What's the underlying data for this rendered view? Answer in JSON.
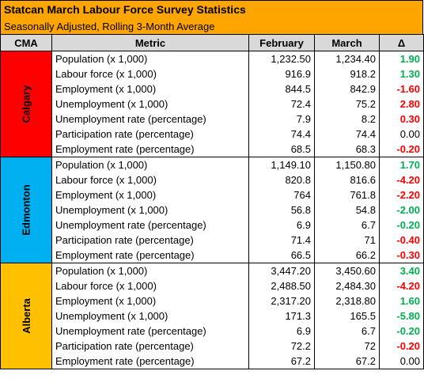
{
  "title": "Statcan March Labour Force Survey Statistics",
  "subtitle": "Seasonally Adjusted, Rolling 3-Month Average",
  "headers": {
    "cma": "CMA",
    "metric": "Metric",
    "feb": "February",
    "mar": "March",
    "delta": "Δ"
  },
  "colors": {
    "title_bg": "#FFA500",
    "header_bg": "#D9D9D9",
    "calgary": "#FF0000",
    "edmonton": "#00B0F0",
    "alberta": "#FFC000",
    "positive": "#00B050",
    "negative": "#FF0000"
  },
  "groups": [
    {
      "cma": "Calgary",
      "rows": [
        {
          "metric": "Population (x 1,000)",
          "feb": "1,232.50",
          "mar": "1,234.40",
          "delta": "1.90",
          "sign": "pos"
        },
        {
          "metric": "Labour force (x 1,000)",
          "feb": "916.9",
          "mar": "918.2",
          "delta": "1.30",
          "sign": "pos"
        },
        {
          "metric": "Employment (x 1,000)",
          "feb": "844.5",
          "mar": "842.9",
          "delta": "-1.60",
          "sign": "neg"
        },
        {
          "metric": "Unemployment (x 1,000)",
          "feb": "72.4",
          "mar": "75.2",
          "delta": "2.80",
          "sign": "neg"
        },
        {
          "metric": "Unemployment rate (percentage)",
          "feb": "7.9",
          "mar": "8.2",
          "delta": "0.30",
          "sign": "neg"
        },
        {
          "metric": "Participation rate (percentage)",
          "feb": "74.4",
          "mar": "74.4",
          "delta": "0.00",
          "sign": "zero"
        },
        {
          "metric": "Employment rate (percentage)",
          "feb": "68.5",
          "mar": "68.3",
          "delta": "-0.20",
          "sign": "neg"
        }
      ]
    },
    {
      "cma": "Edmonton",
      "rows": [
        {
          "metric": "Population (x 1,000)",
          "feb": "1,149.10",
          "mar": "1,150.80",
          "delta": "1.70",
          "sign": "pos"
        },
        {
          "metric": "Labour force (x 1,000)",
          "feb": "820.8",
          "mar": "816.6",
          "delta": "-4.20",
          "sign": "neg"
        },
        {
          "metric": "Employment (x 1,000)",
          "feb": "764",
          "mar": "761.8",
          "delta": "-2.20",
          "sign": "neg"
        },
        {
          "metric": "Unemployment (x 1,000)",
          "feb": "56.8",
          "mar": "54.8",
          "delta": "-2.00",
          "sign": "pos"
        },
        {
          "metric": "Unemployment rate (percentage)",
          "feb": "6.9",
          "mar": "6.7",
          "delta": "-0.20",
          "sign": "pos"
        },
        {
          "metric": "Participation rate (percentage)",
          "feb": "71.4",
          "mar": "71",
          "delta": "-0.40",
          "sign": "neg"
        },
        {
          "metric": "Employment rate (percentage)",
          "feb": "66.5",
          "mar": "66.2",
          "delta": "-0.30",
          "sign": "neg"
        }
      ]
    },
    {
      "cma": "Alberta",
      "rows": [
        {
          "metric": "Population (x 1,000)",
          "feb": "3,447.20",
          "mar": "3,450.60",
          "delta": "3.40",
          "sign": "pos"
        },
        {
          "metric": "Labour force (x 1,000)",
          "feb": "2,488.50",
          "mar": "2,484.30",
          "delta": "-4.20",
          "sign": "neg"
        },
        {
          "metric": "Employment (x 1,000)",
          "feb": "2,317.20",
          "mar": "2,318.80",
          "delta": "1.60",
          "sign": "pos"
        },
        {
          "metric": "Unemployment (x 1,000)",
          "feb": "171.3",
          "mar": "165.5",
          "delta": "-5.80",
          "sign": "pos"
        },
        {
          "metric": "Unemployment rate (percentage)",
          "feb": "6.9",
          "mar": "6.7",
          "delta": "-0.20",
          "sign": "pos"
        },
        {
          "metric": "Participation rate (percentage)",
          "feb": "72.2",
          "mar": "72",
          "delta": "-0.20",
          "sign": "neg"
        },
        {
          "metric": "Employment rate (percentage)",
          "feb": "67.2",
          "mar": "67.2",
          "delta": "0.00",
          "sign": "zero"
        }
      ]
    }
  ]
}
